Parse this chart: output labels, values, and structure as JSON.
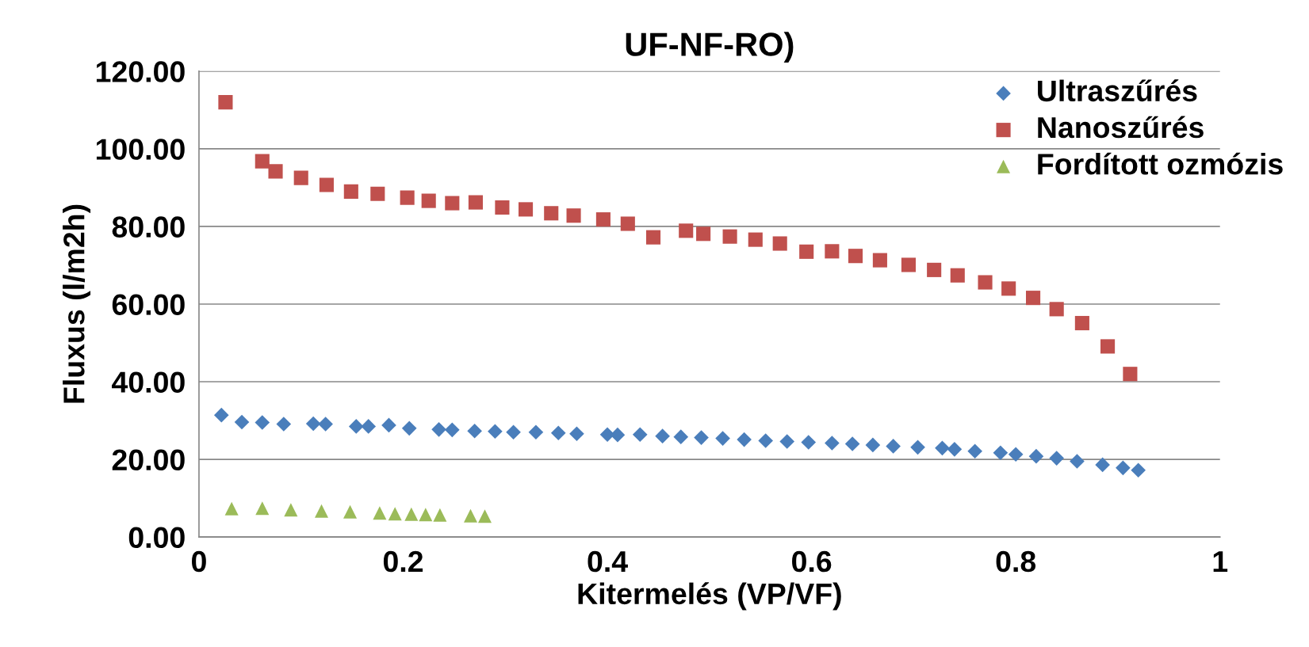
{
  "chart_data": {
    "type": "scatter",
    "title": "UF-NF-RO)",
    "xlabel": "Kitermelés (VP/VF)",
    "ylabel": "Fluxus (l/m2h)",
    "xlim": [
      0,
      1
    ],
    "xticks": [
      {
        "value": 0,
        "label": "0"
      },
      0.2,
      0.4,
      0.6,
      0.8,
      {
        "value": 1,
        "label": "1"
      }
    ],
    "ylim": [
      0,
      120
    ],
    "yticks": [
      {
        "value": 0,
        "label": "0.00"
      },
      {
        "value": 20,
        "label": "20.00"
      },
      {
        "value": 40,
        "label": "40.00"
      },
      {
        "value": 60,
        "label": "60.00"
      },
      {
        "value": 80,
        "label": "80.00"
      },
      {
        "value": 100,
        "label": "100.00"
      },
      {
        "value": 120,
        "label": "120.00"
      }
    ],
    "grid": "y",
    "legend": "top right",
    "series": [
      {
        "name": "Ultraszűrés",
        "color": "#4a7ebb",
        "marker": "diamond",
        "x": [
          0.022,
          0.042,
          0.062,
          0.083,
          0.112,
          0.124,
          0.154,
          0.166,
          0.186,
          0.206,
          0.235,
          0.248,
          0.27,
          0.29,
          0.308,
          0.33,
          0.352,
          0.37,
          0.4,
          0.41,
          0.432,
          0.454,
          0.472,
          0.492,
          0.513,
          0.534,
          0.555,
          0.576,
          0.597,
          0.62,
          0.64,
          0.66,
          0.68,
          0.704,
          0.728,
          0.74,
          0.76,
          0.785,
          0.8,
          0.82,
          0.84,
          0.86,
          0.885,
          0.905,
          0.92
        ],
        "values": [
          31.4,
          29.6,
          29.5,
          29.1,
          29.2,
          29.1,
          28.5,
          28.5,
          28.8,
          28.0,
          27.7,
          27.6,
          27.3,
          27.2,
          27.0,
          27.0,
          26.8,
          26.6,
          26.4,
          26.3,
          26.4,
          26.0,
          25.8,
          25.6,
          25.4,
          25.1,
          24.8,
          24.6,
          24.4,
          24.2,
          24.0,
          23.7,
          23.4,
          23.1,
          22.9,
          22.6,
          22.1,
          21.7,
          21.3,
          20.8,
          20.3,
          19.5,
          18.6,
          17.8,
          17.2
        ]
      },
      {
        "name": "Nanoszűrés",
        "color": "#c0504d",
        "marker": "square",
        "x": [
          0.026,
          0.062,
          0.075,
          0.1,
          0.125,
          0.149,
          0.175,
          0.204,
          0.225,
          0.248,
          0.271,
          0.297,
          0.32,
          0.345,
          0.367,
          0.396,
          0.42,
          0.445,
          0.477,
          0.494,
          0.52,
          0.545,
          0.569,
          0.595,
          0.62,
          0.643,
          0.667,
          0.695,
          0.72,
          0.743,
          0.77,
          0.793,
          0.817,
          0.84,
          0.865,
          0.89,
          0.912
        ],
        "values": [
          112.0,
          96.8,
          94.2,
          92.5,
          90.7,
          89.0,
          88.4,
          87.4,
          86.6,
          86.0,
          86.2,
          84.9,
          84.4,
          83.4,
          82.8,
          81.8,
          80.7,
          77.2,
          78.9,
          78.1,
          77.4,
          76.6,
          75.6,
          73.5,
          73.6,
          72.4,
          71.3,
          70.1,
          68.8,
          67.4,
          65.6,
          64.0,
          61.6,
          58.7,
          55.1,
          49.1,
          42.0
        ]
      },
      {
        "name": "Fordított ozmózis",
        "color": "#9bbb59",
        "marker": "triangle",
        "x": [
          0.032,
          0.062,
          0.09,
          0.12,
          0.148,
          0.177,
          0.192,
          0.208,
          0.222,
          0.236,
          0.266,
          0.28
        ],
        "values": [
          7.3,
          7.4,
          7.0,
          6.7,
          6.5,
          6.2,
          6.0,
          5.9,
          5.8,
          5.7,
          5.5,
          5.4
        ]
      }
    ]
  }
}
